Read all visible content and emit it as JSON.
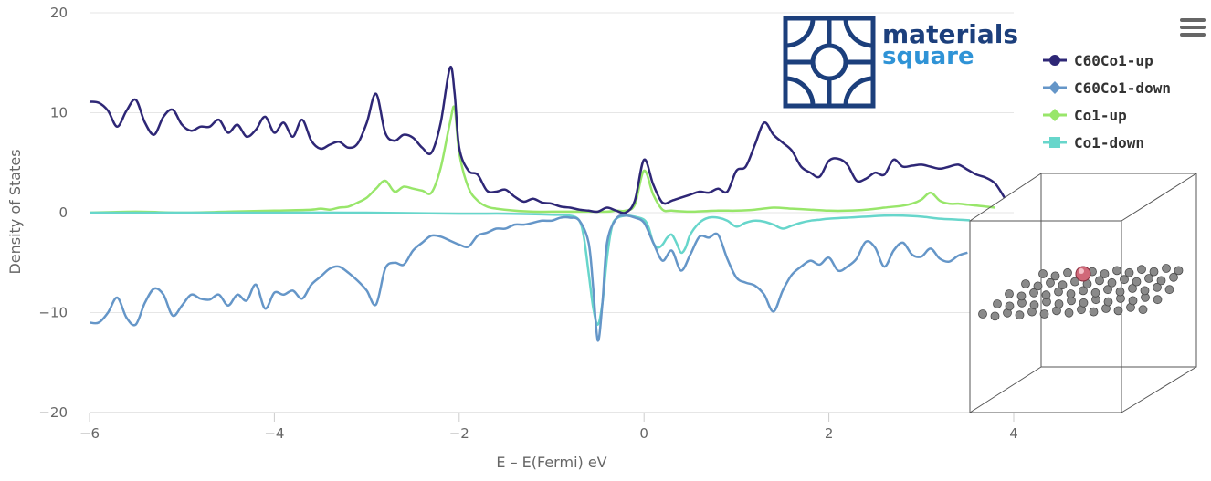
{
  "logo": {
    "line1": "materials",
    "line2": "square"
  },
  "menu": {
    "icon": "hamburger-menu-icon"
  },
  "colors": {
    "c60_up": "#2e2776",
    "c60_down": "#6596c8",
    "co_up": "#98e66a",
    "co_down": "#67d6cb",
    "logo": "#1c3f7c",
    "logo_accent": "#2f93d6"
  },
  "chart_data": {
    "type": "line",
    "title": "",
    "xlabel": "E – E(Fermi) eV",
    "ylabel": "Density of States",
    "xlim": [
      -6,
      4
    ],
    "ylim": [
      -20,
      20
    ],
    "xticks": [
      "−6",
      "−4",
      "−2",
      "0",
      "2",
      "4"
    ],
    "yticks": [
      "−20",
      "−10",
      "0",
      "10",
      "20"
    ],
    "grid": true,
    "legend_position": "top-right",
    "series": [
      {
        "name": "C60Co1-up",
        "marker": "circle",
        "color": "#2e2776",
        "x": [
          -6.0,
          -5.9,
          -5.8,
          -5.7,
          -5.6,
          -5.5,
          -5.4,
          -5.3,
          -5.2,
          -5.1,
          -5.0,
          -4.9,
          -4.8,
          -4.7,
          -4.6,
          -4.5,
          -4.4,
          -4.3,
          -4.2,
          -4.1,
          -4.0,
          -3.9,
          -3.8,
          -3.7,
          -3.6,
          -3.5,
          -3.4,
          -3.3,
          -3.2,
          -3.1,
          -3.0,
          -2.9,
          -2.8,
          -2.7,
          -2.6,
          -2.5,
          -2.4,
          -2.3,
          -2.2,
          -2.1,
          -2.05,
          -2.0,
          -1.9,
          -1.8,
          -1.7,
          -1.6,
          -1.5,
          -1.4,
          -1.3,
          -1.2,
          -1.1,
          -1.0,
          -0.9,
          -0.8,
          -0.7,
          -0.6,
          -0.5,
          -0.4,
          -0.3,
          -0.2,
          -0.1,
          0.0,
          0.1,
          0.2,
          0.3,
          0.4,
          0.5,
          0.6,
          0.7,
          0.8,
          0.9,
          1.0,
          1.1,
          1.2,
          1.3,
          1.4,
          1.5,
          1.6,
          1.7,
          1.8,
          1.9,
          2.0,
          2.1,
          2.2,
          2.3,
          2.4,
          2.5,
          2.6,
          2.7,
          2.8,
          2.9,
          3.0,
          3.1,
          3.2,
          3.3,
          3.4,
          3.5,
          3.6,
          3.7,
          3.8,
          3.9
        ],
        "y": [
          11.1,
          11.0,
          10.2,
          8.6,
          10.2,
          11.3,
          9.0,
          7.8,
          9.6,
          10.3,
          8.8,
          8.2,
          8.6,
          8.6,
          9.3,
          8.0,
          8.8,
          7.6,
          8.3,
          9.6,
          8.0,
          9.0,
          7.6,
          9.3,
          7.2,
          6.4,
          6.8,
          7.1,
          6.5,
          6.9,
          9.0,
          11.9,
          8.0,
          7.2,
          7.8,
          7.5,
          6.5,
          6.0,
          9.0,
          14.5,
          12.0,
          6.5,
          4.2,
          3.8,
          2.2,
          2.1,
          2.3,
          1.6,
          1.1,
          1.4,
          1.0,
          0.9,
          0.6,
          0.5,
          0.3,
          0.2,
          0.1,
          0.5,
          0.2,
          0.0,
          1.2,
          5.3,
          2.8,
          1.0,
          1.2,
          1.5,
          1.8,
          2.1,
          2.0,
          2.4,
          2.1,
          4.2,
          4.6,
          6.8,
          9.0,
          7.8,
          7.0,
          6.2,
          4.6,
          4.0,
          3.6,
          5.2,
          5.4,
          4.8,
          3.2,
          3.4,
          4.0,
          3.8,
          5.3,
          4.6,
          4.7,
          4.8,
          4.6,
          4.4,
          4.6,
          4.8,
          4.3,
          3.8,
          3.5,
          2.9,
          1.5
        ]
      },
      {
        "name": "C60Co1-down",
        "marker": "diamond",
        "color": "#6596c8",
        "x": [
          -6.0,
          -5.9,
          -5.8,
          -5.7,
          -5.6,
          -5.5,
          -5.4,
          -5.3,
          -5.2,
          -5.1,
          -5.0,
          -4.9,
          -4.8,
          -4.7,
          -4.6,
          -4.5,
          -4.4,
          -4.3,
          -4.2,
          -4.1,
          -4.0,
          -3.9,
          -3.8,
          -3.7,
          -3.6,
          -3.5,
          -3.4,
          -3.3,
          -3.2,
          -3.1,
          -3.0,
          -2.9,
          -2.8,
          -2.7,
          -2.6,
          -2.5,
          -2.4,
          -2.3,
          -2.2,
          -2.1,
          -2.0,
          -1.9,
          -1.8,
          -1.7,
          -1.6,
          -1.5,
          -1.4,
          -1.3,
          -1.2,
          -1.1,
          -1.0,
          -0.9,
          -0.8,
          -0.7,
          -0.6,
          -0.55,
          -0.5,
          -0.45,
          -0.4,
          -0.3,
          -0.2,
          -0.1,
          0.0,
          0.1,
          0.2,
          0.3,
          0.4,
          0.5,
          0.6,
          0.7,
          0.8,
          0.9,
          1.0,
          1.1,
          1.2,
          1.3,
          1.4,
          1.5,
          1.6,
          1.7,
          1.8,
          1.9,
          2.0,
          2.1,
          2.2,
          2.3,
          2.4,
          2.5,
          2.6,
          2.7,
          2.8,
          2.9,
          3.0,
          3.1,
          3.2,
          3.3,
          3.4,
          3.5
        ],
        "y": [
          -11.0,
          -11.0,
          -10.0,
          -8.5,
          -10.5,
          -11.2,
          -9.0,
          -7.6,
          -8.2,
          -10.3,
          -9.3,
          -8.2,
          -8.6,
          -8.7,
          -8.2,
          -9.3,
          -8.2,
          -8.8,
          -7.2,
          -9.6,
          -8.0,
          -8.2,
          -7.8,
          -8.6,
          -7.2,
          -6.4,
          -5.6,
          -5.4,
          -6.0,
          -6.8,
          -7.8,
          -9.2,
          -5.6,
          -5.0,
          -5.2,
          -3.8,
          -3.0,
          -2.3,
          -2.4,
          -2.8,
          -3.2,
          -3.4,
          -2.3,
          -2.0,
          -1.6,
          -1.6,
          -1.2,
          -1.2,
          -1.0,
          -0.8,
          -0.8,
          -0.5,
          -0.5,
          -0.8,
          -3.0,
          -7.5,
          -12.8,
          -9.0,
          -3.0,
          -0.6,
          -0.3,
          -0.5,
          -1.0,
          -3.0,
          -4.8,
          -3.8,
          -5.8,
          -4.2,
          -2.4,
          -2.5,
          -2.2,
          -4.6,
          -6.5,
          -7.0,
          -7.3,
          -8.2,
          -9.9,
          -7.8,
          -6.2,
          -5.4,
          -4.8,
          -5.2,
          -4.5,
          -5.8,
          -5.4,
          -4.6,
          -2.9,
          -3.5,
          -5.4,
          -3.8,
          -3.0,
          -4.2,
          -4.4,
          -3.6,
          -4.6,
          -4.9,
          -4.3,
          -4.0
        ]
      },
      {
        "name": "Co1-up",
        "marker": "diamond",
        "color": "#98e66a",
        "x": [
          -6.0,
          -5.5,
          -5.0,
          -4.5,
          -4.0,
          -3.6,
          -3.5,
          -3.4,
          -3.3,
          -3.2,
          -3.1,
          -3.0,
          -2.9,
          -2.8,
          -2.7,
          -2.6,
          -2.5,
          -2.4,
          -2.3,
          -2.2,
          -2.1,
          -2.05,
          -2.0,
          -1.9,
          -1.8,
          -1.7,
          -1.6,
          -1.4,
          -1.2,
          -1.0,
          -0.8,
          -0.6,
          -0.4,
          -0.3,
          -0.2,
          -0.1,
          0.0,
          0.1,
          0.2,
          0.3,
          0.5,
          0.8,
          1.0,
          1.2,
          1.4,
          1.6,
          1.8,
          2.0,
          2.2,
          2.4,
          2.6,
          2.8,
          2.9,
          3.0,
          3.1,
          3.2,
          3.3,
          3.4,
          3.5,
          3.6,
          3.7,
          3.8
        ],
        "y": [
          0.0,
          0.1,
          0.0,
          0.1,
          0.2,
          0.3,
          0.4,
          0.3,
          0.5,
          0.6,
          1.0,
          1.5,
          2.4,
          3.2,
          2.1,
          2.6,
          2.4,
          2.2,
          2.0,
          4.5,
          9.0,
          10.5,
          6.0,
          2.5,
          1.2,
          0.6,
          0.4,
          0.2,
          0.1,
          0.1,
          0.1,
          0.1,
          0.1,
          0.2,
          0.2,
          0.8,
          4.2,
          1.8,
          0.3,
          0.2,
          0.1,
          0.2,
          0.2,
          0.3,
          0.5,
          0.4,
          0.3,
          0.2,
          0.2,
          0.3,
          0.5,
          0.7,
          0.9,
          1.3,
          2.0,
          1.2,
          0.9,
          0.9,
          0.8,
          0.7,
          0.6,
          0.5
        ]
      },
      {
        "name": "Co1-down",
        "marker": "square",
        "color": "#67d6cb",
        "x": [
          -6.0,
          -5.0,
          -4.0,
          -3.0,
          -2.0,
          -1.5,
          -1.0,
          -0.8,
          -0.7,
          -0.65,
          -0.6,
          -0.55,
          -0.5,
          -0.45,
          -0.4,
          -0.35,
          -0.3,
          -0.2,
          -0.1,
          0.0,
          0.05,
          0.1,
          0.15,
          0.2,
          0.25,
          0.3,
          0.35,
          0.4,
          0.45,
          0.5,
          0.6,
          0.7,
          0.8,
          0.9,
          1.0,
          1.1,
          1.2,
          1.3,
          1.4,
          1.5,
          1.6,
          1.7,
          1.8,
          1.9,
          2.0,
          2.2,
          2.4,
          2.6,
          2.8,
          3.0,
          3.2,
          3.4,
          3.6
        ],
        "y": [
          0.0,
          0.0,
          0.0,
          0.0,
          -0.1,
          -0.1,
          -0.2,
          -0.3,
          -0.8,
          -2.5,
          -6.0,
          -9.5,
          -11.2,
          -9.0,
          -4.5,
          -1.5,
          -0.6,
          -0.3,
          -0.4,
          -0.7,
          -1.5,
          -3.0,
          -3.5,
          -3.2,
          -2.5,
          -2.2,
          -3.0,
          -4.0,
          -3.5,
          -2.2,
          -1.0,
          -0.5,
          -0.5,
          -0.8,
          -1.4,
          -1.0,
          -0.8,
          -0.9,
          -1.2,
          -1.6,
          -1.3,
          -1.0,
          -0.8,
          -0.7,
          -0.6,
          -0.5,
          -0.4,
          -0.3,
          -0.3,
          -0.4,
          -0.6,
          -0.7,
          -0.8
        ]
      }
    ]
  }
}
